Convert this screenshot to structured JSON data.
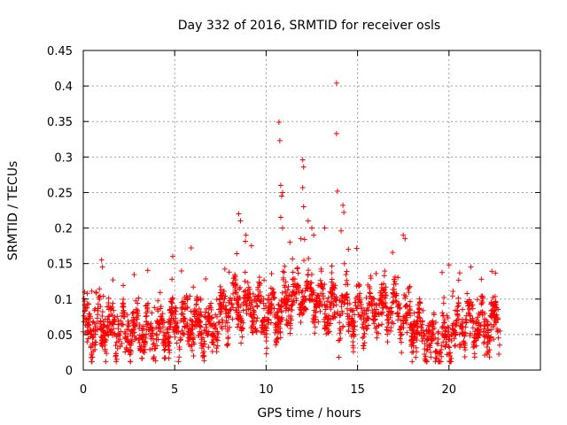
{
  "chart_data": {
    "type": "scatter",
    "title": "Day 332 of 2016, SRMTID for receiver osls",
    "xlabel": "GPS time / hours",
    "ylabel": "SRMTID / TECUs",
    "xlim": [
      0,
      25
    ],
    "ylim": [
      0,
      0.45
    ],
    "xticks": [
      0,
      5,
      10,
      15,
      20
    ],
    "yticks": [
      0,
      0.05,
      0.1,
      0.15,
      0.2,
      0.25,
      0.3,
      0.35,
      0.4,
      0.45
    ],
    "xtick_labels": [
      "0",
      "5",
      "10",
      "15",
      "20"
    ],
    "ytick_labels": [
      "0",
      "0.05",
      "0.1",
      "0.15",
      "0.2",
      "0.25",
      "0.3",
      "0.35",
      "0.4",
      "0.45"
    ],
    "grid": true,
    "marker": "+",
    "series": [
      {
        "name": "SRMTID",
        "color": "#ff0000",
        "x_range": [
          0,
          22.8
        ],
        "n_points": 2200,
        "seed": 332,
        "profile": [
          [
            0.0,
            0.062
          ],
          [
            1.0,
            0.06
          ],
          [
            2.0,
            0.052
          ],
          [
            3.0,
            0.055
          ],
          [
            4.0,
            0.05
          ],
          [
            5.0,
            0.06
          ],
          [
            6.0,
            0.065
          ],
          [
            7.0,
            0.055
          ],
          [
            8.0,
            0.09
          ],
          [
            9.0,
            0.095
          ],
          [
            10.0,
            0.08
          ],
          [
            11.0,
            0.09
          ],
          [
            12.0,
            0.11
          ],
          [
            13.0,
            0.09
          ],
          [
            14.0,
            0.085
          ],
          [
            15.0,
            0.08
          ],
          [
            16.0,
            0.09
          ],
          [
            17.0,
            0.085
          ],
          [
            18.0,
            0.065
          ],
          [
            19.0,
            0.04
          ],
          [
            19.5,
            0.035
          ],
          [
            20.0,
            0.05
          ],
          [
            21.0,
            0.07
          ],
          [
            22.0,
            0.06
          ],
          [
            22.8,
            0.07
          ]
        ],
        "outliers": [
          {
            "x": 10.7,
            "y": 0.349
          },
          {
            "x": 10.75,
            "y": 0.323
          },
          {
            "x": 10.8,
            "y": 0.26
          },
          {
            "x": 10.85,
            "y": 0.245
          },
          {
            "x": 10.9,
            "y": 0.25
          },
          {
            "x": 10.8,
            "y": 0.215
          },
          {
            "x": 10.9,
            "y": 0.2
          },
          {
            "x": 12.0,
            "y": 0.296
          },
          {
            "x": 12.05,
            "y": 0.286
          },
          {
            "x": 12.0,
            "y": 0.257
          },
          {
            "x": 12.05,
            "y": 0.23
          },
          {
            "x": 13.85,
            "y": 0.404
          },
          {
            "x": 13.85,
            "y": 0.333
          },
          {
            "x": 13.9,
            "y": 0.252
          },
          {
            "x": 14.2,
            "y": 0.232
          },
          {
            "x": 14.25,
            "y": 0.222
          },
          {
            "x": 14.1,
            "y": 0.196
          },
          {
            "x": 8.5,
            "y": 0.22
          },
          {
            "x": 8.6,
            "y": 0.21
          },
          {
            "x": 8.9,
            "y": 0.19
          },
          {
            "x": 17.5,
            "y": 0.19
          },
          {
            "x": 17.6,
            "y": 0.185
          },
          {
            "x": 5.9,
            "y": 0.172
          },
          {
            "x": 12.5,
            "y": 0.2
          },
          {
            "x": 12.6,
            "y": 0.19
          },
          {
            "x": 13.2,
            "y": 0.2
          },
          {
            "x": 1.0,
            "y": 0.155
          },
          {
            "x": 1.05,
            "y": 0.145
          },
          {
            "x": 20.0,
            "y": 0.148
          },
          {
            "x": 21.2,
            "y": 0.145
          },
          {
            "x": 11.3,
            "y": 0.18
          },
          {
            "x": 12.3,
            "y": 0.21
          },
          {
            "x": 11.9,
            "y": 0.185
          },
          {
            "x": 14.5,
            "y": 0.17
          },
          {
            "x": 9.2,
            "y": 0.175
          }
        ]
      }
    ]
  }
}
